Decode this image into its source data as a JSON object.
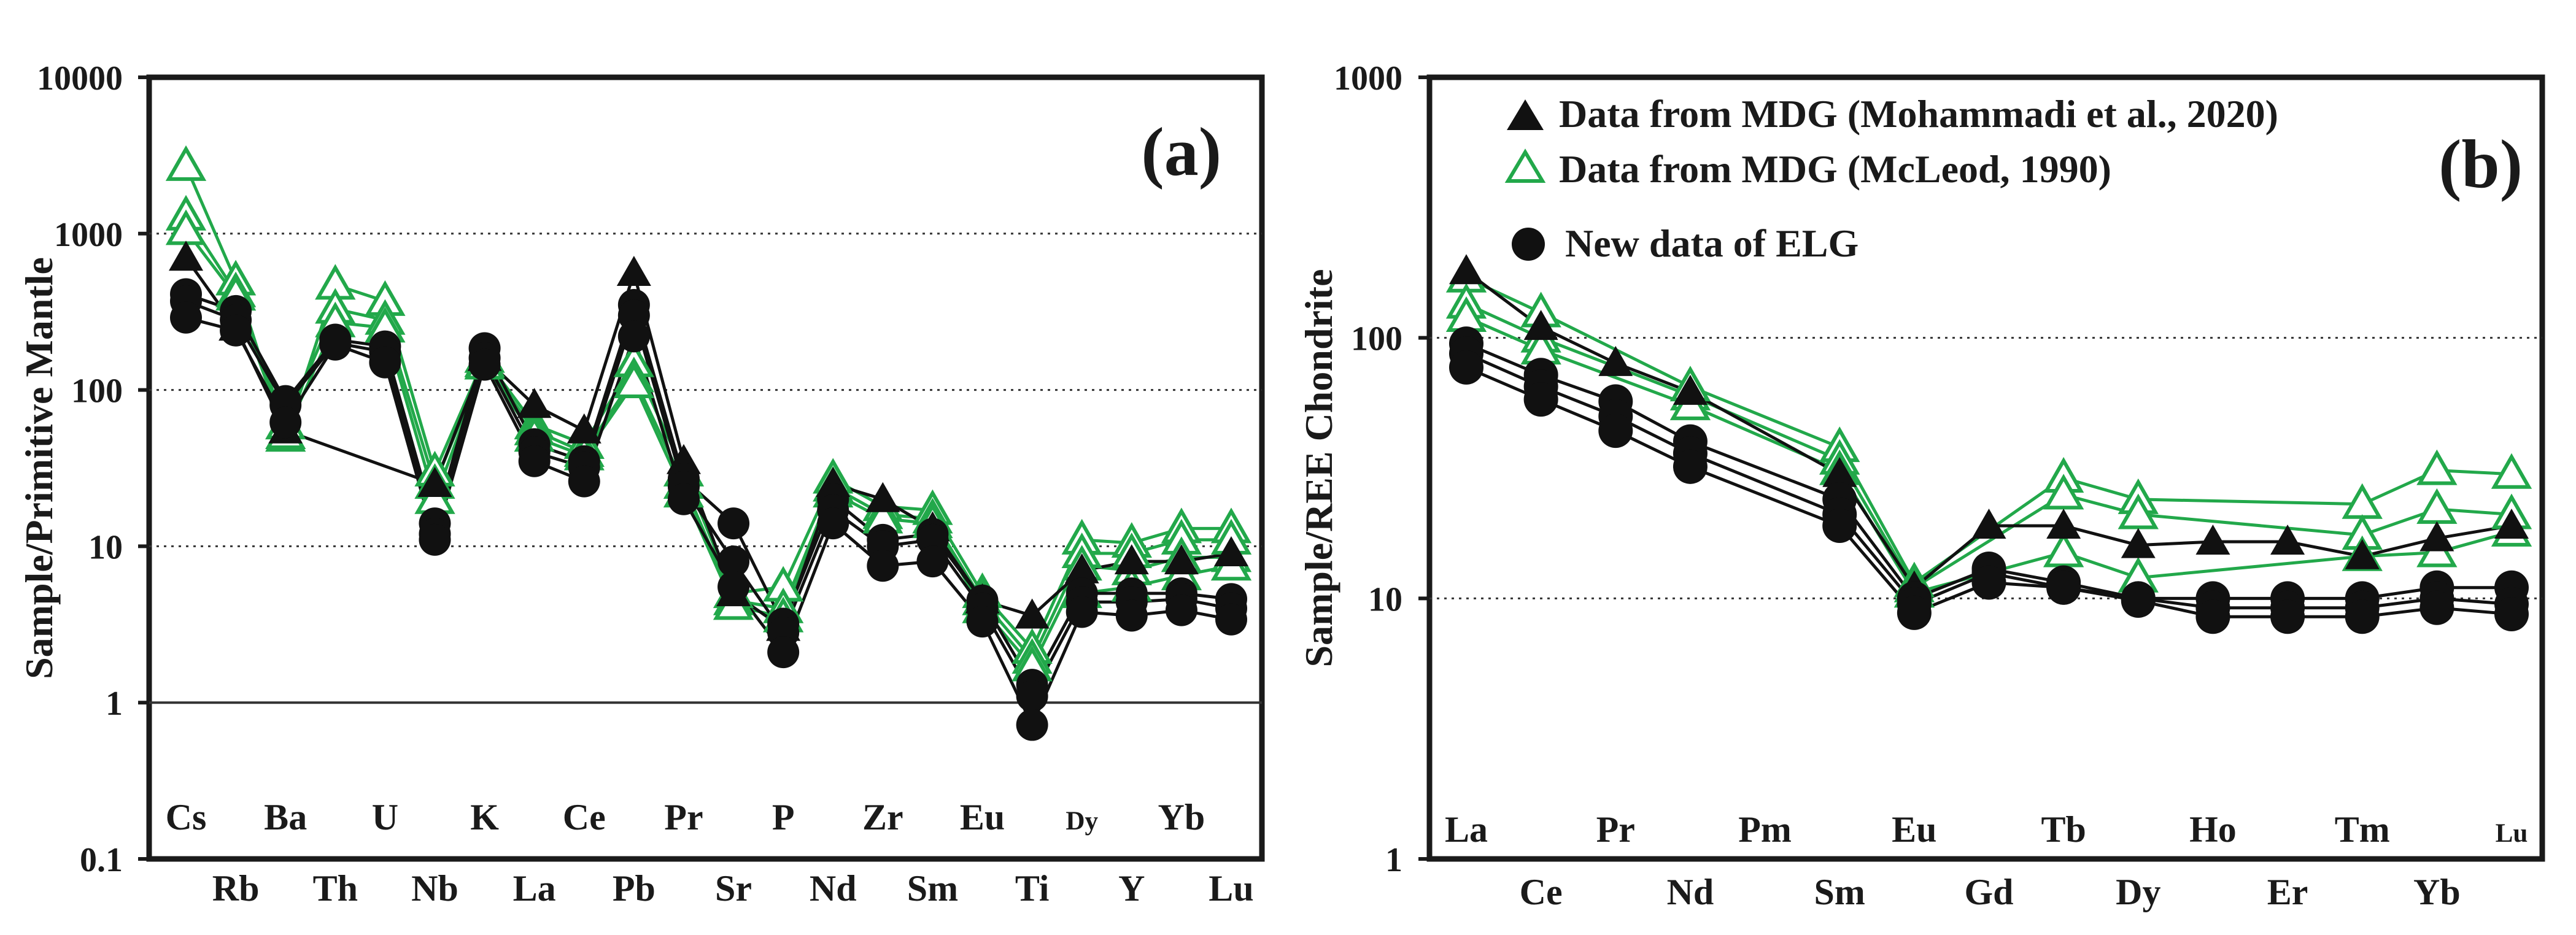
{
  "chart_data": [
    {
      "id": "a",
      "type": "line",
      "panel_label": "(a)",
      "ylabel": "Sample/Primitive Mantle",
      "yscale": "log",
      "ylim": [
        0.1,
        10000
      ],
      "ytick_labels": [
        "0.1",
        "1",
        "10",
        "100",
        "1000",
        "10000"
      ],
      "ytick_values": [
        0.1,
        1,
        10,
        100,
        1000,
        10000
      ],
      "grid_dotted": [
        10,
        100,
        1000
      ],
      "grid_solid": [
        1
      ],
      "categories": [
        "Cs",
        "Rb",
        "Ba",
        "Th",
        "U",
        "Nb",
        "K",
        "La",
        "Ce",
        "Pb",
        "Pr",
        "Sr",
        "P",
        "Nd",
        "Zr",
        "Sm",
        "Eu",
        "Ti",
        "Dy",
        "Y",
        "Yb",
        "Lu"
      ],
      "top_labels": [
        "Cs",
        "Ba",
        "U",
        "K",
        "Ce",
        "Pr",
        "P",
        "Zr",
        "Eu",
        "Dy",
        "Yb"
      ],
      "bottom_labels": [
        "Rb",
        "Th",
        "Nb",
        "La",
        "Pb",
        "Sr",
        "Nd",
        "Sm",
        "Ti",
        "Y",
        "Lu"
      ],
      "colors": {
        "mohammadi": "#111111",
        "mcleod": "#22a84a",
        "elg": "#111111"
      },
      "series": [
        {
          "name": "Data from MDG (Mohammadi et al., 2020)",
          "group": "mohammadi",
          "marker": "filled-triangle",
          "values": [
            700,
            250,
            55,
            null,
            null,
            25,
            160,
            80,
            55,
            560,
            35,
            5,
            3,
            25,
            20,
            13,
            4.5,
            3.6,
            7,
            8,
            8,
            9
          ]
        },
        {
          "name": "Data from MDG (McLeod, 1990)",
          "group": "mcleod",
          "marker": "open-triangle",
          "values": [
            2700,
            500,
            50,
            470,
            370,
            30,
            160,
            60,
            45,
            150,
            30,
            5,
            5.5,
            27,
            18,
            17,
            5,
            2.2,
            11,
            10.5,
            13,
            13
          ]
        },
        {
          "name": "Data from MDG (McLeod, 1990)",
          "group": "mcleod",
          "marker": "open-triangle",
          "values": [
            1300,
            420,
            60,
            330,
            280,
            25,
            150,
            55,
            40,
            120,
            25,
            4.5,
            4,
            24,
            16,
            15,
            4.5,
            1.9,
            9,
            9,
            11,
            11
          ]
        },
        {
          "name": "Data from MDG (McLeod, 1990)",
          "group": "mcleod",
          "marker": "open-triangle",
          "values": [
            1050,
            400,
            52,
            270,
            250,
            20,
            145,
            50,
            38,
            110,
            22,
            4.2,
            3.5,
            22,
            15,
            14,
            4,
            1.7,
            7.5,
            7,
            8.5,
            8.5
          ]
        },
        {
          "name": "Data from MDG (McLeod, 1990)",
          "group": "mcleod",
          "marker": "open-triangle",
          "values": [
            null,
            null,
            null,
            null,
            null,
            null,
            null,
            null,
            null,
            null,
            null,
            null,
            null,
            null,
            null,
            null,
            null,
            null,
            5,
            5.5,
            6.5,
            7.5
          ]
        },
        {
          "name": "New data of ELG",
          "group": "elg",
          "marker": "filled-circle",
          "values": [
            410,
            320,
            85,
            210,
            190,
            14,
            185,
            45,
            35,
            350,
            27,
            14,
            3.2,
            20,
            11,
            12,
            4.5,
            1.3,
            5,
            5,
            5,
            4.6
          ]
        },
        {
          "name": "New data of ELG",
          "group": "elg",
          "marker": "filled-circle",
          "values": [
            370,
            280,
            80,
            200,
            175,
            12,
            160,
            40,
            32,
            300,
            24,
            8,
            2.8,
            17,
            10,
            11,
            4,
            1.1,
            4.4,
            4.4,
            4.6,
            4
          ]
        },
        {
          "name": "New data of ELG",
          "group": "elg",
          "marker": "filled-circle",
          "values": [
            290,
            240,
            62,
            195,
            150,
            11,
            145,
            35,
            26,
            220,
            20,
            5.5,
            2.1,
            14,
            7.5,
            8,
            3.3,
            0.72,
            3.8,
            3.6,
            3.9,
            3.4
          ]
        }
      ]
    },
    {
      "id": "b",
      "type": "line",
      "panel_label": "(b)",
      "ylabel": "Sample/REE Chondrite",
      "yscale": "log",
      "ylim": [
        1,
        1000
      ],
      "ytick_labels": [
        "1",
        "10",
        "100",
        "1000"
      ],
      "ytick_values": [
        1,
        10,
        100,
        1000
      ],
      "grid_dotted": [
        10,
        100
      ],
      "grid_solid": [],
      "categories": [
        "La",
        "Ce",
        "Pr",
        "Nd",
        "Pm",
        "Sm",
        "Eu",
        "Gd",
        "Tb",
        "Dy",
        "Ho",
        "Er",
        "Tm",
        "Yb",
        "Lu"
      ],
      "top_labels": [
        "La",
        "Pr",
        "Pm",
        "Eu",
        "Tb",
        "Ho",
        "Tm",
        "Lu"
      ],
      "bottom_labels": [
        "Ce",
        "Nd",
        "Sm",
        "Gd",
        "Dy",
        "Er",
        "Yb"
      ],
      "legend": [
        {
          "label": "Data from MDG (Mohammadi et al., 2020)",
          "marker": "filled-triangle",
          "color": "#111111"
        },
        {
          "label": "Data from MDG (McLeod, 1990)",
          "marker": "open-triangle",
          "color": "#22a84a"
        },
        {
          "label": "New data of ELG",
          "marker": "filled-circle",
          "color": "#111111"
        }
      ],
      "colors": {
        "mohammadi": "#111111",
        "mcleod": "#22a84a",
        "elg": "#111111"
      },
      "series": [
        {
          "name": "Data from MDG (Mohammadi et al., 2020)",
          "group": "mohammadi",
          "marker": "filled-triangle",
          "values": [
            180,
            110,
            80,
            62,
            null,
            30,
            11,
            19,
            19,
            16,
            16.5,
            16.5,
            14.5,
            17,
            19
          ]
        },
        {
          "name": "Data from MDG (McLeod, 1990)",
          "group": "mcleod",
          "marker": "open-triangle",
          "values": [
            170,
            125,
            null,
            65,
            null,
            38,
            11.5,
            null,
            29,
            24,
            null,
            null,
            23,
            31,
            30
          ]
        },
        {
          "name": "Data from MDG (McLeod, 1990)",
          "group": "mcleod",
          "marker": "open-triangle",
          "values": [
            135,
            100,
            null,
            60,
            null,
            34,
            11,
            null,
            25,
            21,
            null,
            null,
            17.5,
            22,
            21
          ]
        },
        {
          "name": "Data from MDG (McLeod, 1990)",
          "group": "mcleod",
          "marker": "open-triangle",
          "values": [
            120,
            90,
            null,
            55,
            null,
            31,
            10.5,
            null,
            15,
            12,
            null,
            null,
            14.5,
            15,
            18
          ]
        },
        {
          "name": "New data of ELG",
          "group": "elg",
          "marker": "filled-circle",
          "values": [
            95,
            72,
            57,
            40,
            null,
            24,
            10,
            13,
            11.5,
            10,
            10,
            10,
            10,
            11,
            11
          ]
        },
        {
          "name": "New data of ELG",
          "group": "elg",
          "marker": "filled-circle",
          "values": [
            87,
            65,
            50,
            36,
            null,
            21,
            9.5,
            12.5,
            11,
            10,
            9.2,
            9.2,
            9.2,
            10,
            9.5
          ]
        },
        {
          "name": "New data of ELG",
          "group": "elg",
          "marker": "filled-circle",
          "values": [
            77,
            58,
            44,
            32,
            null,
            19,
            8.8,
            11.5,
            11,
            9.8,
            8.5,
            8.5,
            8.5,
            9.2,
            8.7
          ]
        }
      ]
    }
  ]
}
